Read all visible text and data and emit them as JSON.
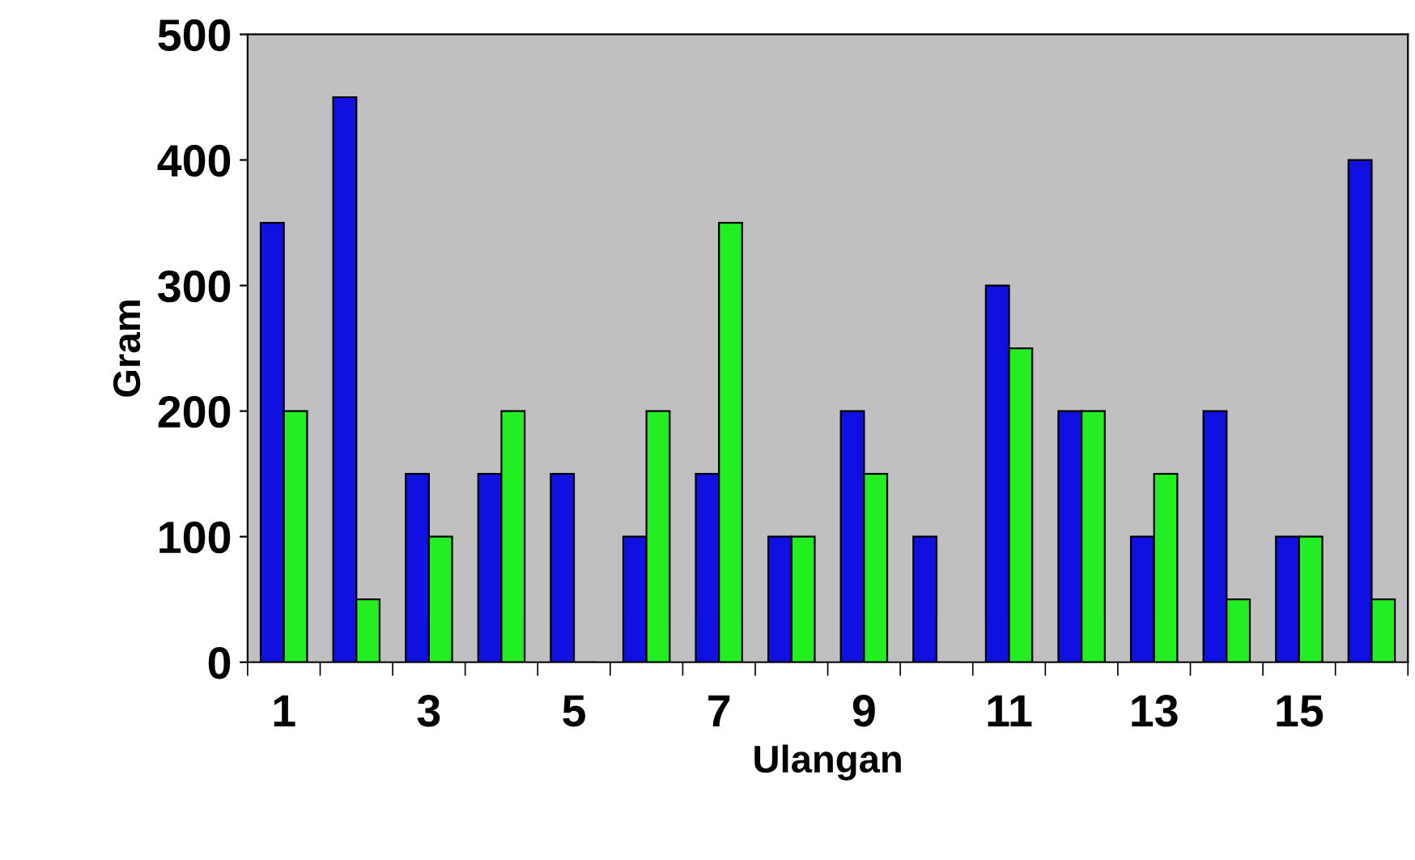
{
  "chart_data": {
    "type": "bar",
    "xlabel": "Ulangan",
    "ylabel": "Gram",
    "categories": [
      "1",
      null,
      "3",
      null,
      "5",
      null,
      "7",
      null,
      "9",
      null,
      "11",
      null,
      "13",
      null,
      "15",
      null
    ],
    "series": [
      {
        "color": "#1010e0",
        "values": [
          350,
          450,
          150,
          150,
          150,
          100,
          150,
          100,
          200,
          100,
          300,
          200,
          100,
          200,
          100,
          400
        ]
      },
      {
        "color": "#22ee22",
        "values": [
          200,
          50,
          100,
          200,
          0,
          200,
          350,
          100,
          150,
          0,
          250,
          200,
          150,
          50,
          100,
          50
        ]
      }
    ],
    "ylim": [
      0,
      500
    ],
    "yticks": [
      0,
      100,
      200,
      300,
      400,
      500
    ],
    "grid": false
  }
}
